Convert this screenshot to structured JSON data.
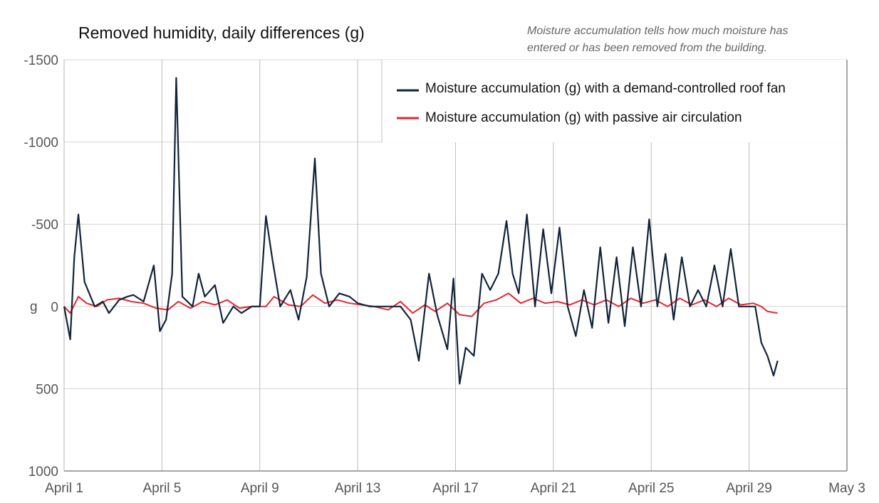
{
  "chart_data": {
    "type": "line",
    "title": "Removed humidity, daily differences (g)",
    "note_lines": [
      "Moisture accumulation tells how much moisture has",
      "entered or has been removed from the building."
    ],
    "xlabel": "",
    "ylabel": "",
    "y_unit": "g",
    "y_inverted": true,
    "ylim": [
      -1500,
      1000
    ],
    "y_ticks": [
      {
        "value": -1500,
        "label": "-1500"
      },
      {
        "value": -1000,
        "label": "-1000"
      },
      {
        "value": -500,
        "label": "-500"
      },
      {
        "value": 0,
        "label": "0"
      },
      {
        "value": 500,
        "label": "500"
      },
      {
        "value": 1000,
        "label": "1000"
      }
    ],
    "xlim": [
      "April 1",
      "May 3"
    ],
    "x_ticks": [
      "April 1",
      "April 5",
      "April 9",
      "April 13",
      "April 17",
      "April 21",
      "April 25",
      "April 29",
      "May 3"
    ],
    "grid": true,
    "legend_position": "top-right",
    "series": [
      {
        "name": "Moisture accumulation (g) with a demand-controlled roof fan",
        "color": "#12233a",
        "points": [
          [
            "April 1 00:00",
            0
          ],
          [
            "April 1 06:00",
            200
          ],
          [
            "April 1 10:00",
            -300
          ],
          [
            "April 1 14:00",
            -560
          ],
          [
            "April 1 20:00",
            -150
          ],
          [
            "April 2 06:00",
            0
          ],
          [
            "April 2 14:00",
            -30
          ],
          [
            "April 2 20:00",
            40
          ],
          [
            "April 3 06:00",
            -40
          ],
          [
            "April 3 14:00",
            -60
          ],
          [
            "April 3 20:00",
            -70
          ],
          [
            "April 4 06:00",
            -30
          ],
          [
            "April 4 16:00",
            -250
          ],
          [
            "April 4 22:00",
            150
          ],
          [
            "April 5 04:00",
            80
          ],
          [
            "April 5 10:00",
            -200
          ],
          [
            "April 5 14:00",
            -1390
          ],
          [
            "April 5 20:00",
            -60
          ],
          [
            "April 6 06:00",
            0
          ],
          [
            "April 6 12:00",
            -200
          ],
          [
            "April 6 18:00",
            -60
          ],
          [
            "April 7 04:00",
            -130
          ],
          [
            "April 7 12:00",
            100
          ],
          [
            "April 7 22:00",
            0
          ],
          [
            "April 8 06:00",
            40
          ],
          [
            "April 8 16:00",
            0
          ],
          [
            "April 9 00:00",
            0
          ],
          [
            "April 9 06:00",
            -550
          ],
          [
            "April 9 12:00",
            -300
          ],
          [
            "April 9 20:00",
            0
          ],
          [
            "April 10 06:00",
            -100
          ],
          [
            "April 10 14:00",
            80
          ],
          [
            "April 10 22:00",
            -180
          ],
          [
            "April 11 06:00",
            -900
          ],
          [
            "April 11 12:00",
            -200
          ],
          [
            "April 11 20:00",
            0
          ],
          [
            "April 12 06:00",
            -80
          ],
          [
            "April 12 16:00",
            -60
          ],
          [
            "April 13 00:00",
            -20
          ],
          [
            "April 13 12:00",
            0
          ],
          [
            "April 14 06:00",
            0
          ],
          [
            "April 14 18:00",
            0
          ],
          [
            "April 15 04:00",
            80
          ],
          [
            "April 15 12:00",
            330
          ],
          [
            "April 15 22:00",
            -200
          ],
          [
            "April 16 06:00",
            50
          ],
          [
            "April 16 16:00",
            260
          ],
          [
            "April 16 22:00",
            -170
          ],
          [
            "April 17 04:00",
            470
          ],
          [
            "April 17 10:00",
            250
          ],
          [
            "April 17 18:00",
            300
          ],
          [
            "April 18 02:00",
            -200
          ],
          [
            "April 18 10:00",
            -100
          ],
          [
            "April 18 18:00",
            -200
          ],
          [
            "April 19 02:00",
            -520
          ],
          [
            "April 19 08:00",
            -200
          ],
          [
            "April 19 14:00",
            -80
          ],
          [
            "April 19 22:00",
            -560
          ],
          [
            "April 20 06:00",
            0
          ],
          [
            "April 20 14:00",
            -470
          ],
          [
            "April 20 22:00",
            -80
          ],
          [
            "April 21 06:00",
            -480
          ],
          [
            "April 21 14:00",
            0
          ],
          [
            "April 21 22:00",
            180
          ],
          [
            "April 22 06:00",
            -100
          ],
          [
            "April 22 14:00",
            130
          ],
          [
            "April 22 22:00",
            -360
          ],
          [
            "April 23 06:00",
            100
          ],
          [
            "April 23 14:00",
            -300
          ],
          [
            "April 23 22:00",
            120
          ],
          [
            "April 24 06:00",
            -360
          ],
          [
            "April 24 14:00",
            0
          ],
          [
            "April 24 22:00",
            -530
          ],
          [
            "April 25 06:00",
            0
          ],
          [
            "April 25 14:00",
            -320
          ],
          [
            "April 25 22:00",
            80
          ],
          [
            "April 26 06:00",
            -300
          ],
          [
            "April 26 14:00",
            0
          ],
          [
            "April 26 22:00",
            -100
          ],
          [
            "April 27 06:00",
            0
          ],
          [
            "April 27 14:00",
            -250
          ],
          [
            "April 27 22:00",
            0
          ],
          [
            "April 28 06:00",
            -350
          ],
          [
            "April 28 14:00",
            0
          ],
          [
            "April 28 22:00",
            0
          ],
          [
            "April 29 06:00",
            0
          ],
          [
            "April 29 12:00",
            220
          ],
          [
            "April 29 18:00",
            300
          ],
          [
            "April 30 00:00",
            420
          ],
          [
            "April 30 04:00",
            330
          ]
        ]
      },
      {
        "name": "Moisture accumulation (g) with passive air circulation",
        "color": "#e0282e",
        "points": [
          [
            "April 1 00:00",
            0
          ],
          [
            "April 1 06:00",
            40
          ],
          [
            "April 1 14:00",
            -60
          ],
          [
            "April 1 22:00",
            -20
          ],
          [
            "April 2 08:00",
            0
          ],
          [
            "April 2 18:00",
            -40
          ],
          [
            "April 3 06:00",
            -50
          ],
          [
            "April 3 18:00",
            -30
          ],
          [
            "April 4 06:00",
            -20
          ],
          [
            "April 4 18:00",
            10
          ],
          [
            "April 5 06:00",
            20
          ],
          [
            "April 5 16:00",
            -30
          ],
          [
            "April 6 04:00",
            10
          ],
          [
            "April 6 16:00",
            -30
          ],
          [
            "April 7 04:00",
            -10
          ],
          [
            "April 7 16:00",
            -40
          ],
          [
            "April 8 04:00",
            10
          ],
          [
            "April 8 16:00",
            0
          ],
          [
            "April 9 06:00",
            0
          ],
          [
            "April 9 14:00",
            -60
          ],
          [
            "April 10 04:00",
            -10
          ],
          [
            "April 10 16:00",
            0
          ],
          [
            "April 11 04:00",
            -70
          ],
          [
            "April 11 16:00",
            -20
          ],
          [
            "April 12 04:00",
            -40
          ],
          [
            "April 12 16:00",
            -20
          ],
          [
            "April 13 04:00",
            -10
          ],
          [
            "April 13 16:00",
            0
          ],
          [
            "April 14 06:00",
            20
          ],
          [
            "April 14 18:00",
            -30
          ],
          [
            "April 15 06:00",
            40
          ],
          [
            "April 15 18:00",
            -10
          ],
          [
            "April 16 04:00",
            30
          ],
          [
            "April 16 16:00",
            -20
          ],
          [
            "April 17 04:00",
            50
          ],
          [
            "April 17 16:00",
            60
          ],
          [
            "April 18 04:00",
            -20
          ],
          [
            "April 18 16:00",
            -40
          ],
          [
            "April 19 04:00",
            -80
          ],
          [
            "April 19 16:00",
            -20
          ],
          [
            "April 20 04:00",
            -50
          ],
          [
            "April 20 16:00",
            -20
          ],
          [
            "April 21 04:00",
            -30
          ],
          [
            "April 21 16:00",
            -10
          ],
          [
            "April 22 04:00",
            -40
          ],
          [
            "April 22 16:00",
            -10
          ],
          [
            "April 23 04:00",
            -40
          ],
          [
            "April 23 16:00",
            0
          ],
          [
            "April 24 04:00",
            -50
          ],
          [
            "April 24 16:00",
            -20
          ],
          [
            "April 25 04:00",
            -40
          ],
          [
            "April 25 16:00",
            0
          ],
          [
            "April 26 04:00",
            -50
          ],
          [
            "April 26 16:00",
            -10
          ],
          [
            "April 27 04:00",
            -40
          ],
          [
            "April 27 16:00",
            0
          ],
          [
            "April 28 04:00",
            -50
          ],
          [
            "April 28 16:00",
            -10
          ],
          [
            "April 29 04:00",
            -20
          ],
          [
            "April 29 12:00",
            0
          ],
          [
            "April 29 18:00",
            30
          ],
          [
            "April 30 04:00",
            40
          ]
        ]
      }
    ]
  }
}
